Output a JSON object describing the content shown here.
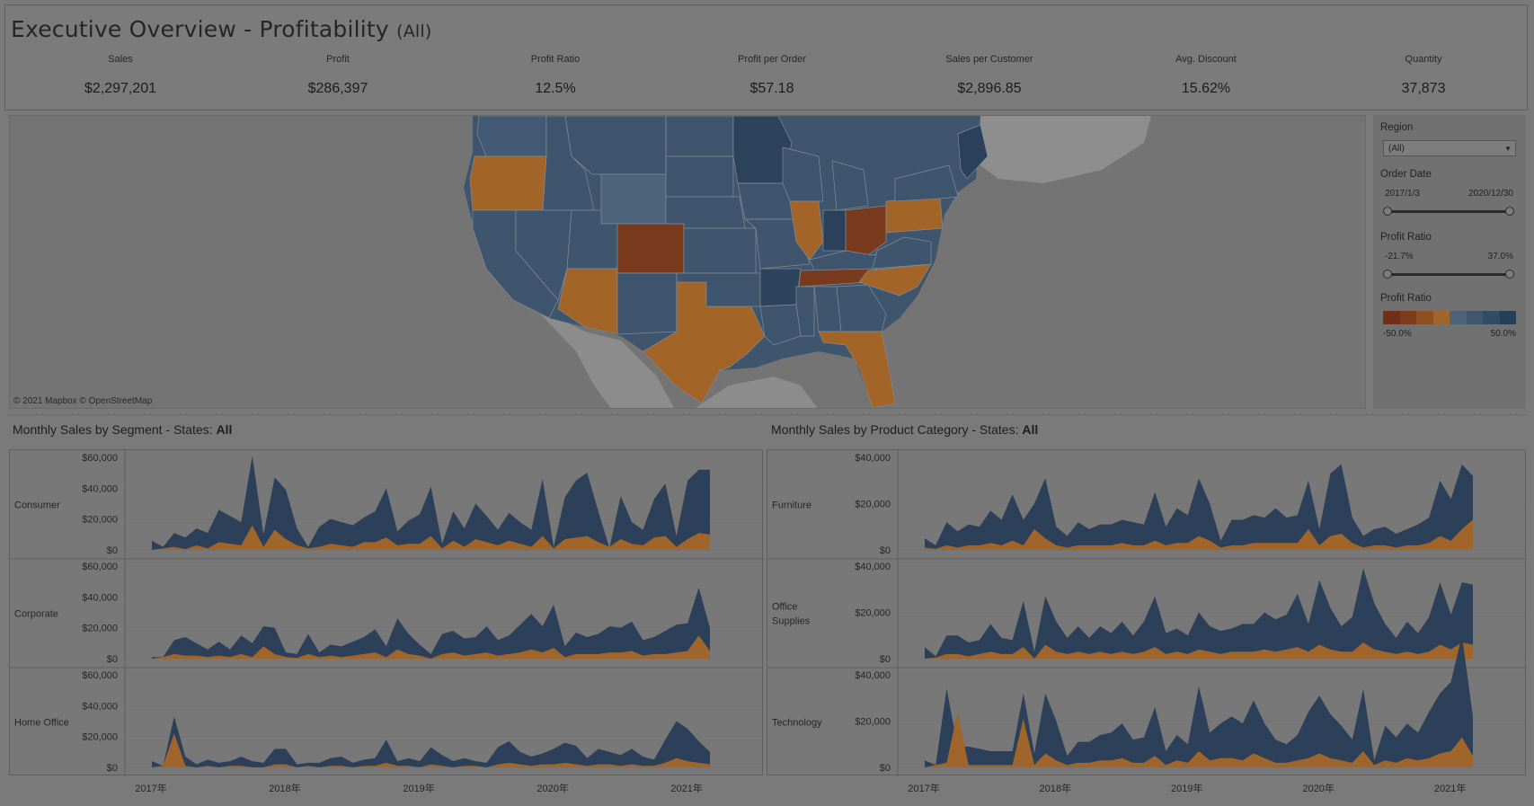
{
  "header": {
    "title": "Executive Overview - Profitability",
    "filter_hint": "(All)"
  },
  "kpis": [
    {
      "label": "Sales",
      "value": "$2,297,201"
    },
    {
      "label": "Profit",
      "value": "$286,397"
    },
    {
      "label": "Profit Ratio",
      "value": "12.5%"
    },
    {
      "label": "Profit per Order",
      "value": "$57.18"
    },
    {
      "label": "Sales per Customer",
      "value": "$2,896.85"
    },
    {
      "label": "Avg. Discount",
      "value": "15.62%"
    },
    {
      "label": "Quantity",
      "value": "37,873"
    }
  ],
  "map": {
    "credit": "© 2021 Mapbox © OpenStreetMap"
  },
  "filters": {
    "region": {
      "label": "Region",
      "selected": "(All)"
    },
    "order_date": {
      "label": "Order Date",
      "start": "2017/1/3",
      "end": "2020/12/30"
    },
    "profit_ratio_filter": {
      "label": "Profit Ratio",
      "min": "-21.7%",
      "max": "37.0%"
    },
    "profit_ratio_legend": {
      "label": "Profit Ratio",
      "min": "-50.0%",
      "max": "50.0%",
      "colors": [
        "#6e3018",
        "#7d3a1c",
        "#8e5022",
        "#a0652a",
        "#4e6378",
        "#40566d",
        "#334b64",
        "#283e57"
      ]
    }
  },
  "colors": {
    "sales": "#2c405a",
    "profit": "#a0652a",
    "loss": "#7a3a1e",
    "profit_state": "#a36428",
    "good": "#3e5570"
  },
  "left_section": {
    "title_prefix": "Monthly Sales by Segment - States: ",
    "title_bold": "All"
  },
  "right_section": {
    "title_prefix": "Monthly Sales by Product Category - States: ",
    "title_bold": "All"
  },
  "x_ticks": [
    "2017年",
    "2018年",
    "2019年",
    "2020年",
    "2021年"
  ],
  "chart_data": [
    {
      "type": "area",
      "title": "Monthly Sales by Segment - States: All",
      "x_labels": [
        "2017年",
        "2018年",
        "2019年",
        "2020年",
        "2021年"
      ],
      "rows": [
        {
          "name": "Consumer",
          "ylim": [
            0,
            60000
          ],
          "yticks": [
            "$60,000",
            "$40,000",
            "$20,000",
            "$0"
          ],
          "sales": [
            6000,
            2000,
            11000,
            8000,
            14000,
            11000,
            26000,
            22000,
            18000,
            61000,
            10000,
            47000,
            39000,
            14000,
            2000,
            15000,
            20000,
            18000,
            16000,
            21000,
            25000,
            40000,
            12000,
            19000,
            23000,
            41000,
            4000,
            25000,
            14000,
            30000,
            22000,
            13000,
            24000,
            18000,
            13000,
            46000,
            2000,
            34000,
            45000,
            50000,
            25000,
            1000,
            35000,
            18000,
            13000,
            33000,
            43000,
            9000,
            45000,
            52000,
            52000
          ],
          "profit": [
            0,
            -1000,
            2000,
            -500,
            3000,
            1000,
            5000,
            4000,
            3000,
            16000,
            -2000,
            13000,
            7000,
            3000,
            -1000,
            2000,
            4000,
            3000,
            2000,
            5000,
            5000,
            8000,
            3000,
            4000,
            4000,
            9000,
            -1000,
            6000,
            2000,
            7000,
            5000,
            3000,
            6000,
            4000,
            2000,
            9000,
            -1000,
            7000,
            8000,
            9000,
            5000,
            -2000,
            7000,
            4000,
            3000,
            8000,
            9000,
            2000,
            7000,
            11000,
            10000
          ]
        },
        {
          "name": "Corporate",
          "ylim": [
            0,
            60000
          ],
          "yticks": [
            "$60,000",
            "$40,000",
            "$20,000",
            "$0"
          ],
          "sales": [
            1000,
            1000,
            12000,
            14000,
            10000,
            6000,
            11000,
            6000,
            15000,
            10000,
            21000,
            20000,
            4000,
            3000,
            16000,
            4000,
            9000,
            8000,
            11000,
            14000,
            19000,
            8000,
            26000,
            16000,
            9000,
            3000,
            16000,
            18000,
            13000,
            14000,
            21000,
            12000,
            15000,
            22000,
            29000,
            21000,
            35000,
            8000,
            17000,
            14000,
            16000,
            21000,
            20000,
            24000,
            12000,
            14000,
            18000,
            22000,
            23000,
            46000,
            20000
          ],
          "profit": [
            0,
            -1000,
            3000,
            2000,
            2000,
            1000,
            2000,
            1000,
            3000,
            1000,
            8000,
            3000,
            1000,
            -500,
            3000,
            1000,
            2000,
            1000,
            2000,
            3000,
            4000,
            1000,
            6000,
            3000,
            2000,
            0,
            3000,
            4000,
            2000,
            3000,
            4000,
            2000,
            3000,
            4000,
            6000,
            4000,
            7000,
            1000,
            3000,
            3000,
            3000,
            4000,
            4000,
            5000,
            2000,
            3000,
            3000,
            4000,
            5000,
            15000,
            5000
          ]
        },
        {
          "name": "Home Office",
          "ylim": [
            0,
            60000
          ],
          "yticks": [
            "$60,000",
            "$40,000",
            "$20,000",
            "$0"
          ],
          "sales": [
            4000,
            1000,
            33000,
            7000,
            2000,
            5000,
            3000,
            4000,
            7000,
            4000,
            3000,
            12000,
            12000,
            2000,
            3000,
            3000,
            6000,
            7000,
            3000,
            5000,
            6000,
            18000,
            4000,
            6000,
            4000,
            13000,
            8000,
            4000,
            6000,
            4000,
            3000,
            13000,
            17000,
            10000,
            7000,
            9000,
            12000,
            16000,
            14000,
            6000,
            12000,
            10000,
            8000,
            12000,
            7000,
            5000,
            18000,
            30000,
            25000,
            17000,
            10000
          ],
          "profit": [
            0,
            -1000,
            22000,
            1000,
            0,
            1000,
            0,
            1000,
            1000,
            0,
            0,
            2000,
            2000,
            0,
            1000,
            0,
            1000,
            1000,
            0,
            1000,
            1000,
            3000,
            1000,
            1000,
            0,
            2000,
            1000,
            0,
            1000,
            1000,
            0,
            2000,
            3000,
            2000,
            1000,
            2000,
            2000,
            3000,
            2000,
            1000,
            2000,
            2000,
            1000,
            2000,
            1000,
            1000,
            3000,
            6000,
            4000,
            3000,
            2000
          ]
        }
      ]
    },
    {
      "type": "area",
      "title": "Monthly Sales by Product Category - States: All",
      "x_labels": [
        "2017年",
        "2018年",
        "2019年",
        "2020年",
        "2021年"
      ],
      "rows": [
        {
          "name": "Furniture",
          "ylim": [
            0,
            40000
          ],
          "yticks": [
            "$40,000",
            "$20,000",
            "$0"
          ],
          "sales": [
            5000,
            2000,
            12000,
            8000,
            11000,
            10000,
            17000,
            13000,
            24000,
            13000,
            20000,
            31000,
            10000,
            6000,
            12000,
            9000,
            11000,
            11000,
            13000,
            12000,
            11000,
            25000,
            10000,
            18000,
            15000,
            31000,
            20000,
            4000,
            13000,
            13000,
            15000,
            14000,
            18000,
            14000,
            15000,
            30000,
            9000,
            33000,
            37000,
            14000,
            6000,
            9000,
            10000,
            7000,
            9000,
            11000,
            14000,
            30000,
            22000,
            37000,
            32000
          ],
          "profit": [
            -1000,
            -500,
            2000,
            1000,
            2000,
            2000,
            3000,
            2000,
            4000,
            2000,
            9000,
            5000,
            2000,
            1000,
            2000,
            2000,
            2000,
            2000,
            3000,
            2000,
            2000,
            4000,
            2000,
            3000,
            3000,
            6000,
            4000,
            1000,
            2000,
            2000,
            3000,
            3000,
            3000,
            3000,
            3000,
            9000,
            2000,
            6000,
            7000,
            3000,
            1000,
            2000,
            2000,
            1000,
            2000,
            2000,
            3000,
            6000,
            4000,
            9000,
            13000
          ]
        },
        {
          "name": "Office Supplies",
          "ylim": [
            0,
            40000
          ],
          "yticks": [
            "$40,000",
            "$20,000",
            "$0"
          ],
          "sales": [
            5000,
            1000,
            10000,
            10000,
            7000,
            8000,
            15000,
            9000,
            8000,
            25000,
            3000,
            27000,
            16000,
            9000,
            14000,
            9000,
            14000,
            11000,
            16000,
            10000,
            16000,
            27000,
            11000,
            13000,
            10000,
            20000,
            14000,
            12000,
            13000,
            15000,
            15000,
            20000,
            17000,
            19000,
            28000,
            15000,
            34000,
            22000,
            14000,
            18000,
            39000,
            24000,
            15000,
            9000,
            16000,
            11000,
            18000,
            33000,
            19000,
            33000,
            32000
          ],
          "profit": [
            0,
            -500,
            2000,
            2000,
            1000,
            2000,
            3000,
            2000,
            2000,
            5000,
            0,
            6000,
            3000,
            2000,
            3000,
            2000,
            3000,
            2000,
            3000,
            2000,
            3000,
            5000,
            2000,
            3000,
            2000,
            4000,
            3000,
            2000,
            3000,
            3000,
            3000,
            4000,
            3000,
            4000,
            5000,
            3000,
            6000,
            4000,
            3000,
            3000,
            7000,
            4000,
            3000,
            2000,
            3000,
            2000,
            3000,
            6000,
            4000,
            7000,
            6000
          ]
        },
        {
          "name": "Technology",
          "ylim": [
            0,
            40000
          ],
          "yticks": [
            "$40,000",
            "$20,000",
            "$0"
          ],
          "sales": [
            3000,
            1000,
            34000,
            9000,
            9000,
            8000,
            7000,
            7000,
            7000,
            32000,
            6000,
            32000,
            20000,
            5000,
            11000,
            11000,
            14000,
            15000,
            19000,
            12000,
            13000,
            26000,
            7000,
            14000,
            10000,
            35000,
            15000,
            19000,
            22000,
            19000,
            29000,
            19000,
            12000,
            10000,
            14000,
            24000,
            31000,
            23000,
            18000,
            12000,
            34000,
            3000,
            18000,
            13000,
            19000,
            15000,
            24000,
            32000,
            37000,
            57000,
            22000
          ],
          "profit": [
            0,
            -1000,
            2000,
            -24000,
            1000,
            1000,
            1000,
            1000,
            1000,
            -21000,
            1000,
            6000,
            3000,
            1000,
            2000,
            2000,
            3000,
            3000,
            4000,
            2000,
            2000,
            5000,
            1000,
            3000,
            2000,
            7000,
            3000,
            4000,
            4000,
            3000,
            6000,
            4000,
            2000,
            2000,
            3000,
            4000,
            6000,
            4000,
            3000,
            2000,
            7000,
            1000,
            3000,
            2000,
            4000,
            3000,
            4000,
            6000,
            7000,
            13000,
            5000
          ]
        }
      ]
    }
  ]
}
